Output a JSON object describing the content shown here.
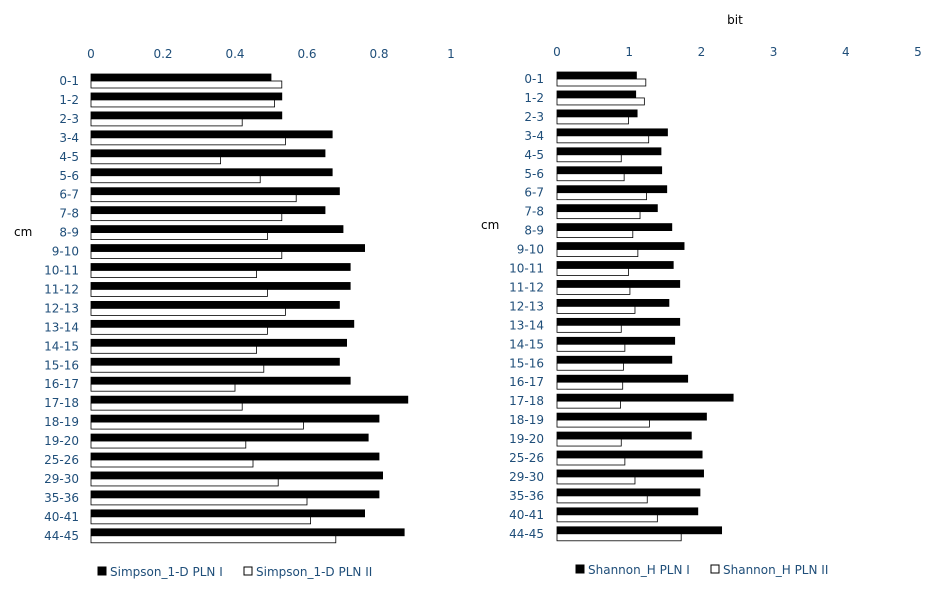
{
  "charts": [
    {
      "type": "bar",
      "orientation": "horizontal",
      "title": "",
      "unit_label": "",
      "ylabel": "cm",
      "xlim": [
        0,
        1
      ],
      "ticks": [
        "0",
        "0.2",
        "0.4",
        "0.6",
        "0.8",
        "1"
      ],
      "tick_values": [
        0,
        0.2,
        0.4,
        0.6,
        0.8,
        1
      ],
      "categories": [
        "0-1",
        "1-2",
        "2-3",
        "3-4",
        "4-5",
        "5-6",
        "6-7",
        "7-8",
        "8-9",
        "9-10",
        "10-11",
        "11-12",
        "12-13",
        "13-14",
        "14-15",
        "15-16",
        "16-17",
        "17-18",
        "18-19",
        "19-20",
        "25-26",
        "29-30",
        "35-36",
        "40-41",
        "44-45"
      ],
      "series": [
        {
          "name": "Simpson_1-D PLN I",
          "fill": "#000000",
          "values": [
            0.5,
            0.53,
            0.53,
            0.67,
            0.65,
            0.67,
            0.69,
            0.65,
            0.7,
            0.76,
            0.72,
            0.72,
            0.69,
            0.73,
            0.71,
            0.69,
            0.72,
            0.88,
            0.8,
            0.77,
            0.8,
            0.81,
            0.8,
            0.76,
            0.87
          ]
        },
        {
          "name": "Simpson_1-D PLN II",
          "fill": "#ffffff",
          "values": [
            0.53,
            0.51,
            0.42,
            0.54,
            0.36,
            0.47,
            0.57,
            0.53,
            0.49,
            0.53,
            0.46,
            0.49,
            0.54,
            0.49,
            0.46,
            0.48,
            0.4,
            0.42,
            0.59,
            0.43,
            0.45,
            0.52,
            0.6,
            0.61,
            0.68
          ]
        }
      ]
    },
    {
      "type": "bar",
      "orientation": "horizontal",
      "title": "",
      "unit_label": "bit",
      "ylabel": "cm",
      "xlim": [
        0,
        5
      ],
      "ticks": [
        "0",
        "1",
        "2",
        "3",
        "4",
        "5"
      ],
      "tick_values": [
        0,
        1,
        2,
        3,
        4,
        5
      ],
      "categories": [
        "0-1",
        "1-2",
        "2-3",
        "3-4",
        "4-5",
        "5-6",
        "6-7",
        "7-8",
        "8-9",
        "9-10",
        "10-11",
        "11-12",
        "12-13",
        "13-14",
        "14-15",
        "15-16",
        "16-17",
        "17-18",
        "18-19",
        "19-20",
        "25-26",
        "29-30",
        "35-36",
        "40-41",
        "44-45"
      ],
      "series": [
        {
          "name": "Shannon_H PLN I",
          "fill": "#000000",
          "values": [
            1.1,
            1.09,
            1.11,
            1.53,
            1.44,
            1.45,
            1.52,
            1.39,
            1.59,
            1.76,
            1.61,
            1.7,
            1.55,
            1.7,
            1.63,
            1.59,
            1.81,
            2.44,
            2.07,
            1.86,
            2.01,
            2.03,
            1.98,
            1.95,
            2.28
          ]
        },
        {
          "name": "Shannon_H PLN II",
          "fill": "#ffffff",
          "values": [
            1.23,
            1.21,
            0.99,
            1.27,
            0.89,
            0.93,
            1.24,
            1.15,
            1.05,
            1.12,
            0.99,
            1.01,
            1.08,
            0.89,
            0.94,
            0.92,
            0.91,
            0.88,
            1.28,
            0.89,
            0.94,
            1.08,
            1.25,
            1.39,
            1.72
          ]
        }
      ]
    }
  ],
  "palette": {
    "text": "#1f4e79",
    "bar_dark": "#000000",
    "bar_light": "#ffffff",
    "stroke": "#000000"
  }
}
